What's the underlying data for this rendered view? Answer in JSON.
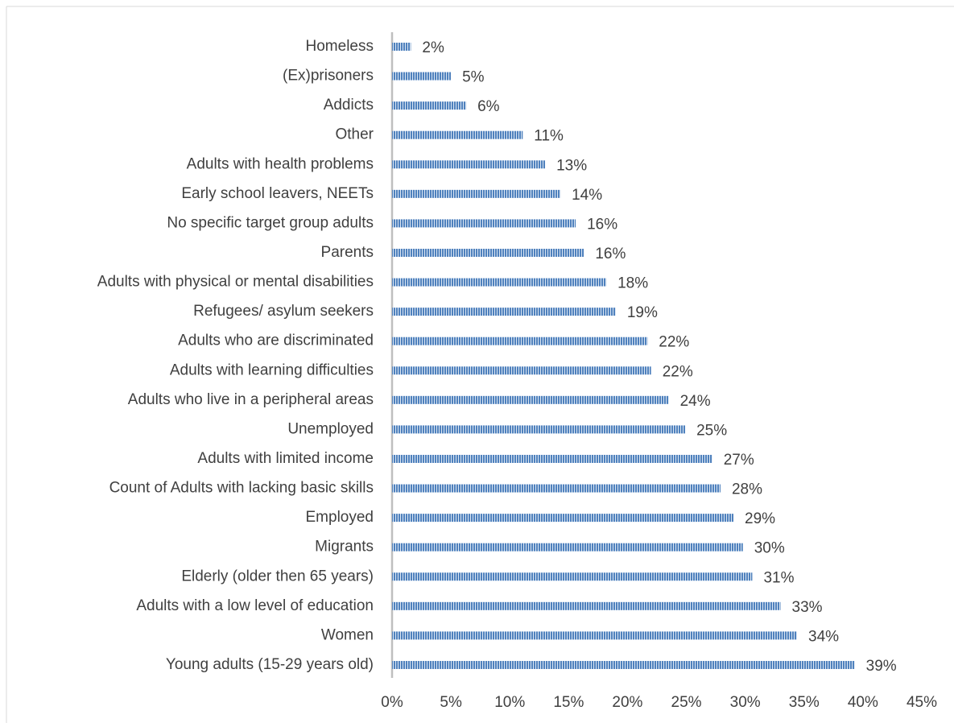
{
  "chart_data": {
    "type": "bar",
    "orientation": "horizontal",
    "categories": [
      "Homeless",
      "(Ex)prisoners",
      "Addicts",
      "Other",
      "Adults with health problems",
      "Early school leavers, NEETs",
      "No specific target group adults",
      "Parents",
      "Adults with physical or mental disabilities",
      "Refugees/ asylum seekers",
      "Adults who are discriminated",
      "Adults with learning difficulties",
      "Adults who live in a peripheral areas",
      "Unemployed",
      "Adults with limited income",
      "Count of Adults with lacking basic skills",
      "Employed",
      "Migrants",
      "Elderly (older then 65 years)",
      "Adults with a low level of education",
      "Women",
      "Young adults (15-29 years old)"
    ],
    "values": [
      1.6,
      5.0,
      6.3,
      11.1,
      13.0,
      14.3,
      15.6,
      16.3,
      18.2,
      19.0,
      21.7,
      22.0,
      23.5,
      24.9,
      27.2,
      27.9,
      29.0,
      29.8,
      30.6,
      33.0,
      34.4,
      39.3
    ],
    "value_labels": [
      "2%",
      "5%",
      "6%",
      "11%",
      "13%",
      "14%",
      "16%",
      "16%",
      "18%",
      "19%",
      "22%",
      "22%",
      "24%",
      "25%",
      "27%",
      "28%",
      "29%",
      "30%",
      "31%",
      "33%",
      "34%",
      "39%"
    ],
    "color": "#4f81bd",
    "xlim": [
      0,
      45
    ],
    "xticks": [
      {
        "value": 0,
        "label": "0%"
      },
      {
        "value": 5,
        "label": "5%"
      },
      {
        "value": 10,
        "label": "10%"
      },
      {
        "value": 15,
        "label": "15%"
      },
      {
        "value": 20,
        "label": "20%"
      },
      {
        "value": 25,
        "label": "25%"
      },
      {
        "value": 30,
        "label": "30%"
      },
      {
        "value": 35,
        "label": "35%"
      },
      {
        "value": 40,
        "label": "40%"
      },
      {
        "value": 45,
        "label": "45%"
      }
    ]
  }
}
